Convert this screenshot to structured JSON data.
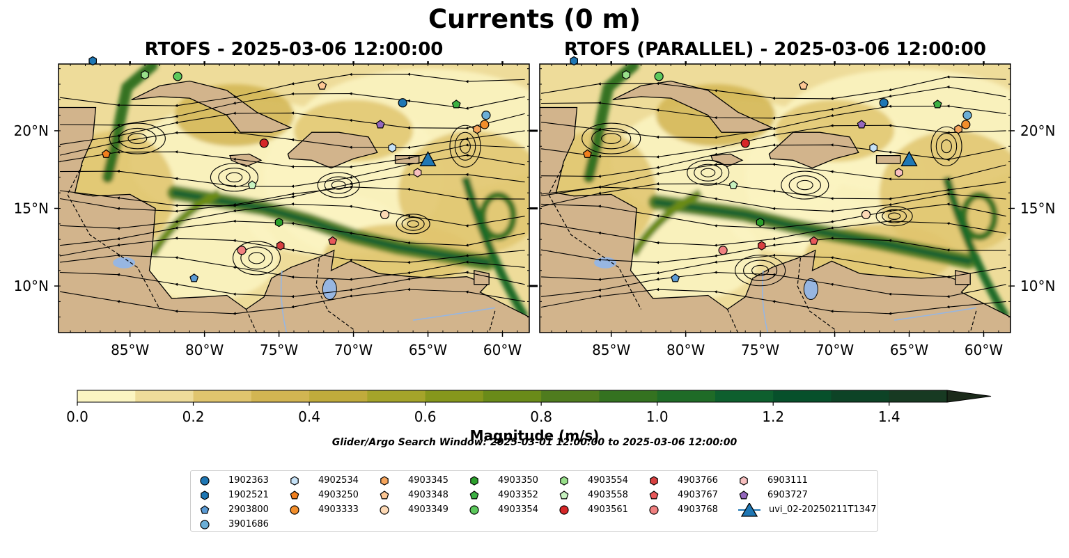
{
  "figure": {
    "title": "Currents (0 m)",
    "colorbar_label": "Magnitude (m/s)",
    "search_window": "Glider/Argo Search Window: 2025-03-01 12:00:00 to 2025-03-06 12:00:00"
  },
  "colors": {
    "land": "#d2b48c",
    "lake": "#97b6e1",
    "colormap": [
      "#fbf5c2",
      "#eedc9a",
      "#e0c56e",
      "#d2b552",
      "#c0ab3c",
      "#a5a42a",
      "#86971c",
      "#6a8b19",
      "#4f7c1e",
      "#347220",
      "#1f6b27",
      "#0e5f2e",
      "#07502b",
      "#0d4326",
      "#173a22",
      "#1b2a1a"
    ]
  },
  "chart_data": [
    {
      "type": "streamplot",
      "title": "RTOFS - 2025-03-06 12:00:00",
      "x_ticks": [
        "85°W",
        "80°W",
        "75°W",
        "70°W",
        "65°W",
        "60°W"
      ],
      "y_ticks": [
        "20°N",
        "15°N",
        "10°N"
      ],
      "xlim": [
        -89.8,
        -58.2
      ],
      "ylim": [
        7.0,
        24.3
      ]
    },
    {
      "type": "streamplot",
      "title": "RTOFS (PARALLEL) - 2025-03-06 12:00:00",
      "x_ticks": [
        "85°W",
        "80°W",
        "75°W",
        "70°W",
        "65°W",
        "60°W"
      ],
      "y_ticks": [
        "20°N",
        "15°N",
        "10°N"
      ],
      "xlim": [
        -89.8,
        -58.2
      ],
      "ylim": [
        7.0,
        24.3
      ]
    }
  ],
  "colorbar": {
    "min": 0.0,
    "max": 1.5,
    "step": 0.1,
    "extend": "max",
    "ticks": [
      "0.0",
      "0.2",
      "0.4",
      "0.6",
      "0.8",
      "1.0",
      "1.2",
      "1.4"
    ]
  },
  "floats": [
    {
      "id": "1902363",
      "marker": "circle",
      "color": "#1f77b4",
      "lon": -66.7,
      "lat": 21.8
    },
    {
      "id": "1902521",
      "marker": "hexagon",
      "color": "#1f77b4",
      "lon": -87.5,
      "lat": 24.5
    },
    {
      "id": "2903800",
      "marker": "pentagon",
      "color": "#5b9bd5",
      "lon": -80.7,
      "lat": 10.5
    },
    {
      "id": "3901686",
      "marker": "circle",
      "color": "#6baed6",
      "lon": -61.1,
      "lat": 21.0
    },
    {
      "id": "4902534",
      "marker": "hexagon",
      "color": "#c6e2f7",
      "lon": -67.4,
      "lat": 18.9
    },
    {
      "id": "4903250",
      "marker": "pentagon",
      "color": "#f07f1e",
      "lon": -86.6,
      "lat": 18.5
    },
    {
      "id": "4903333",
      "marker": "circle",
      "color": "#f28e2b",
      "lon": -61.2,
      "lat": 20.4
    },
    {
      "id": "4903345",
      "marker": "hexagon",
      "color": "#f6a55c",
      "lon": -61.7,
      "lat": 20.1
    },
    {
      "id": "4903348",
      "marker": "pentagon",
      "color": "#fdc794",
      "lon": -72.1,
      "lat": 22.9
    },
    {
      "id": "4903349",
      "marker": "circle",
      "color": "#fdd9b5",
      "lon": -67.9,
      "lat": 14.6
    },
    {
      "id": "4903350",
      "marker": "hexagon",
      "color": "#2ca02c",
      "lon": -75.0,
      "lat": 14.1
    },
    {
      "id": "4903352",
      "marker": "pentagon",
      "color": "#3cb043",
      "lon": -63.1,
      "lat": 21.7
    },
    {
      "id": "4903354",
      "marker": "circle",
      "color": "#5cc85c",
      "lon": -81.8,
      "lat": 23.5
    },
    {
      "id": "4903554",
      "marker": "hexagon",
      "color": "#98df8a",
      "lon": -84.0,
      "lat": 23.6
    },
    {
      "id": "4903558",
      "marker": "pentagon",
      "color": "#c7f2c0",
      "lon": -76.8,
      "lat": 16.5
    },
    {
      "id": "4903561",
      "marker": "circle",
      "color": "#d62728",
      "lon": -76.0,
      "lat": 19.2
    },
    {
      "id": "4903766",
      "marker": "hexagon",
      "color": "#d84040",
      "lon": -74.9,
      "lat": 12.6
    },
    {
      "id": "4903767",
      "marker": "pentagon",
      "color": "#e8585a",
      "lon": -71.4,
      "lat": 12.9
    },
    {
      "id": "4903768",
      "marker": "circle",
      "color": "#f08080",
      "lon": -77.5,
      "lat": 12.3
    },
    {
      "id": "6903111",
      "marker": "hexagon",
      "color": "#f8c0c0",
      "lon": -65.7,
      "lat": 17.3
    },
    {
      "id": "6903727",
      "marker": "pentagon",
      "color": "#9467bd",
      "lon": -68.2,
      "lat": 20.4
    },
    {
      "id": "uvi_02-20250211T1347",
      "marker": "triangle",
      "color": "#1f77b4",
      "lon": -65.0,
      "lat": 18.1
    }
  ]
}
